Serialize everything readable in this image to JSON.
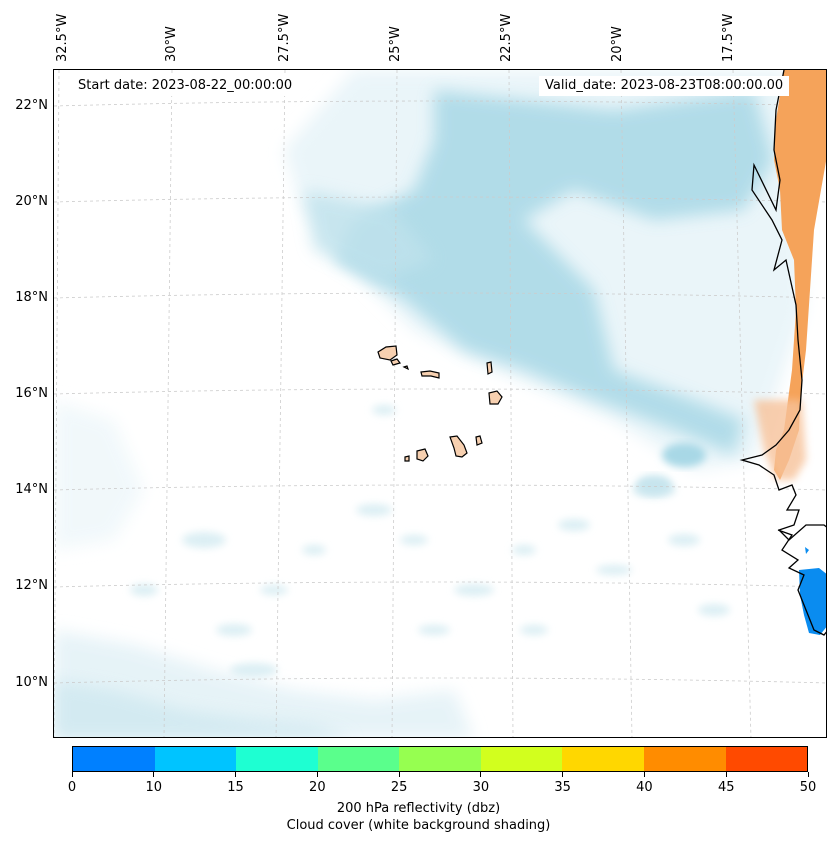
{
  "header": {
    "start_date": "Start date: 2023-08-22_00:00:00",
    "valid_date": "Valid_date: 2023-08-23T08:00:00.00"
  },
  "map": {
    "longitude_labels": [
      "32.5°W",
      "30°W",
      "27.5°W",
      "25°W",
      "22.5°W",
      "20°W",
      "17.5°W"
    ],
    "latitude_labels": [
      "22°N",
      "20°N",
      "18°N",
      "16°N",
      "14°N",
      "12°N",
      "10°N"
    ],
    "colors": {
      "land": "#f5a35a",
      "island": "#f7d0b0",
      "cloud_light": "#eaf5f9",
      "cloud_dark": "#a8d8e6",
      "reflectivity_blue": "#0a8cf0",
      "coastline": "#000000",
      "grid": "#cccccc"
    }
  },
  "colorbar": {
    "ticks": [
      "0",
      "10",
      "15",
      "20",
      "25",
      "30",
      "35",
      "40",
      "45",
      "50"
    ],
    "colors": [
      "#0080ff",
      "#00c4ff",
      "#1effd2",
      "#5aff8c",
      "#96ff50",
      "#d2ff1e",
      "#ffd700",
      "#ff8c00",
      "#ff4a00"
    ],
    "label": "200 hPa reflectivity (dbz)",
    "sublabel": "Cloud cover (white background shading)"
  }
}
